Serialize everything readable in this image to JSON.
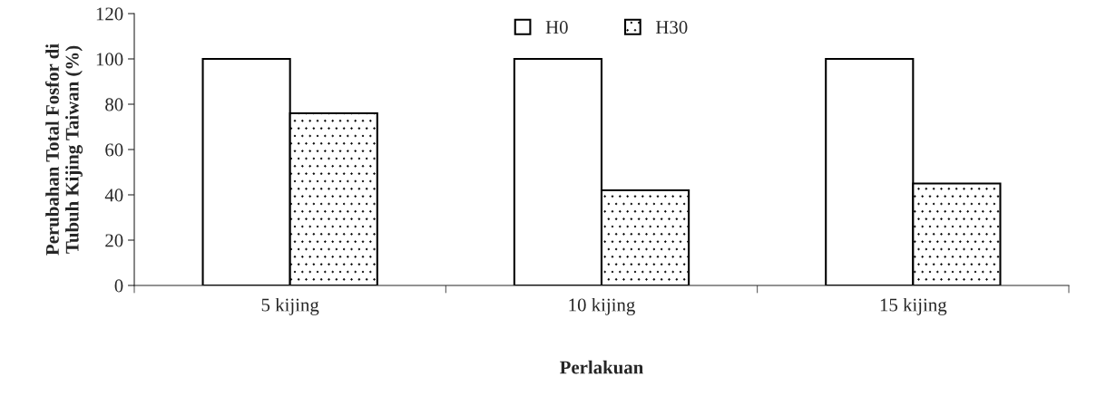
{
  "chart_data": {
    "type": "bar",
    "categories": [
      "5 kijing",
      "10 kijing",
      "15 kijing"
    ],
    "series": [
      {
        "name": "H0",
        "color": "#ffffff",
        "values": [
          100,
          100,
          100
        ]
      },
      {
        "name": "H30",
        "color": "#000000",
        "values": [
          76,
          42,
          45
        ]
      }
    ],
    "xlabel": "Perlakuan",
    "ylabel": "Perubahan Total Fosfor di\nTubuh Kijing Taiwan (%)",
    "ylim": [
      0,
      120
    ],
    "yticks": [
      0,
      20,
      40,
      60,
      80,
      100,
      120
    ],
    "grid": false,
    "legend": "top"
  }
}
